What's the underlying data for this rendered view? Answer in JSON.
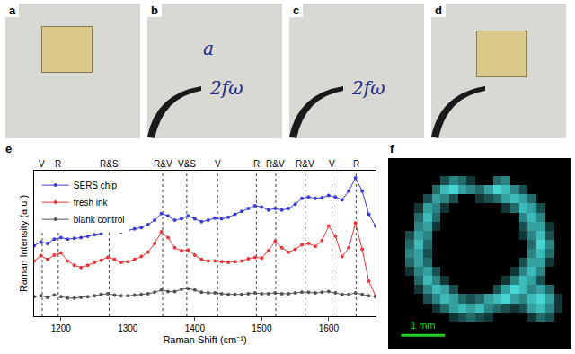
{
  "photos": [
    {
      "label": "a"
    },
    {
      "label": "b",
      "handwriting": [
        "a",
        "2fω"
      ]
    },
    {
      "label": "c",
      "handwriting": [
        "2fω"
      ]
    },
    {
      "label": "d"
    }
  ],
  "chart_data": [
    {
      "panel": "e",
      "type": "line",
      "x_label": "Raman Shift (cm⁻¹)",
      "y_label": "Raman Intensity (a.u.)",
      "x": [
        1160,
        1170,
        1180,
        1190,
        1200,
        1210,
        1220,
        1230,
        1240,
        1250,
        1260,
        1270,
        1280,
        1290,
        1300,
        1310,
        1320,
        1330,
        1340,
        1350,
        1360,
        1370,
        1380,
        1390,
        1400,
        1410,
        1420,
        1430,
        1440,
        1450,
        1460,
        1470,
        1480,
        1490,
        1500,
        1510,
        1520,
        1530,
        1540,
        1550,
        1560,
        1570,
        1580,
        1590,
        1600,
        1610,
        1620,
        1630,
        1640,
        1650,
        1660,
        1670
      ],
      "series": [
        {
          "name": "SERS chip",
          "color": "#3b3bd6",
          "marker": "circle",
          "line_style": "solid",
          "values": [
            48.5,
            51,
            50,
            53,
            54,
            53,
            53.5,
            54,
            55,
            56,
            57,
            59,
            58.5,
            58,
            59,
            60,
            61,
            63,
            66,
            70.5,
            69,
            66,
            67,
            69,
            67,
            65,
            66,
            67.5,
            67,
            68,
            70,
            72,
            74,
            76,
            75,
            73,
            74,
            73,
            74,
            77,
            81,
            82,
            81,
            81.5,
            83,
            82,
            80,
            86,
            95,
            86,
            70,
            62
          ]
        },
        {
          "name": "fresh ink",
          "color": "#e8383d",
          "marker": "circle",
          "line_style": "solid",
          "values": [
            38,
            41.5,
            39,
            42,
            43.5,
            38,
            35,
            33.5,
            35,
            37,
            38.5,
            40.5,
            39,
            37,
            37.5,
            39,
            41,
            44,
            50,
            58,
            54,
            47,
            45,
            45.5,
            42,
            39,
            38,
            38,
            37.5,
            37,
            37.5,
            38,
            39.5,
            40.5,
            40,
            45,
            51.5,
            47,
            44,
            46,
            49,
            50,
            48,
            52,
            62,
            55,
            41,
            47,
            64,
            46,
            24,
            14
          ]
        },
        {
          "name": "blank control",
          "color": "#555555",
          "marker": "circle",
          "line_style": "solid",
          "values": [
            13.5,
            14,
            13,
            14.5,
            13.5,
            12.5,
            12.5,
            13,
            13.5,
            14,
            15,
            15.5,
            14.5,
            14,
            14,
            14.5,
            15,
            15.5,
            16.5,
            18,
            17,
            17,
            18.5,
            19,
            18,
            16.5,
            16,
            16,
            15.5,
            15,
            15,
            15,
            15.5,
            16,
            15.5,
            15.5,
            16,
            15.5,
            15.5,
            16,
            16.5,
            16.5,
            16,
            16.5,
            17,
            16,
            15,
            15,
            16,
            15,
            14,
            13.5
          ]
        }
      ],
      "xlim": [
        1160,
        1670
      ],
      "xticks": [
        1200,
        1300,
        1400,
        1500,
        1600
      ],
      "ylim": [
        0,
        100
      ],
      "tick_labels": "x",
      "grid": false,
      "legend": "top-left",
      "annotations": [
        {
          "x": 1172,
          "text": "V"
        },
        {
          "x": 1196,
          "text": "R"
        },
        {
          "x": 1272,
          "text": "R&S"
        },
        {
          "x": 1352,
          "text": "R&V"
        },
        {
          "x": 1388,
          "text": "V&S"
        },
        {
          "x": 1434,
          "text": "V"
        },
        {
          "x": 1492,
          "text": "R"
        },
        {
          "x": 1521,
          "text": "R&V"
        },
        {
          "x": 1565,
          "text": "R&V"
        },
        {
          "x": 1605,
          "text": "V"
        },
        {
          "x": 1641,
          "text": "R"
        }
      ]
    },
    {
      "panel": "f",
      "type": "heatmap",
      "color": "#4ff0f0",
      "xlim": [
        0,
        4.2
      ],
      "ylim": [
        0,
        4.2
      ],
      "zlim": [
        0,
        9
      ],
      "tick_labels": false,
      "scale_bar": {
        "length": 1,
        "label": "1 mm"
      },
      "cells": [
        [
          0,
          0,
          0,
          0,
          0,
          0,
          0,
          0,
          0,
          0,
          0,
          0,
          0,
          0,
          0,
          0,
          0,
          0,
          0,
          0,
          0
        ],
        [
          0,
          0,
          0,
          0,
          0,
          0,
          0,
          0,
          0,
          0,
          0,
          0,
          0,
          0,
          0,
          0,
          0,
          0,
          0,
          0,
          0
        ],
        [
          0,
          0,
          0,
          0,
          0,
          0,
          3,
          5,
          4,
          2,
          0,
          0,
          4,
          5,
          0,
          0,
          0,
          0,
          0,
          0,
          0
        ],
        [
          0,
          0,
          0,
          0,
          0,
          4,
          7,
          8,
          6,
          5,
          4,
          6,
          8,
          7,
          5,
          3,
          0,
          0,
          0,
          0,
          0
        ],
        [
          0,
          0,
          0,
          0,
          3,
          6,
          5,
          3,
          0,
          0,
          2,
          3,
          4,
          6,
          7,
          6,
          4,
          0,
          0,
          0,
          0
        ],
        [
          0,
          0,
          0,
          2,
          6,
          5,
          2,
          0,
          0,
          0,
          0,
          0,
          0,
          2,
          4,
          7,
          6,
          3,
          0,
          0,
          0
        ],
        [
          0,
          0,
          0,
          4,
          7,
          4,
          0,
          0,
          0,
          0,
          0,
          0,
          0,
          0,
          0,
          5,
          7,
          5,
          0,
          0,
          0
        ],
        [
          0,
          0,
          0,
          5,
          6,
          2,
          0,
          0,
          0,
          0,
          0,
          0,
          0,
          0,
          0,
          3,
          6,
          6,
          2,
          0,
          0
        ],
        [
          0,
          0,
          3,
          6,
          5,
          0,
          0,
          0,
          0,
          0,
          0,
          0,
          0,
          0,
          0,
          2,
          5,
          7,
          3,
          0,
          0
        ],
        [
          0,
          0,
          4,
          7,
          4,
          0,
          0,
          0,
          0,
          0,
          0,
          0,
          0,
          0,
          0,
          0,
          4,
          8,
          5,
          0,
          0
        ],
        [
          0,
          0,
          5,
          6,
          3,
          0,
          0,
          0,
          0,
          0,
          0,
          0,
          0,
          0,
          0,
          0,
          5,
          7,
          4,
          0,
          0
        ],
        [
          0,
          0,
          4,
          6,
          4,
          0,
          0,
          0,
          0,
          0,
          0,
          0,
          0,
          0,
          0,
          3,
          6,
          6,
          2,
          0,
          0
        ],
        [
          0,
          0,
          2,
          5,
          6,
          3,
          0,
          0,
          0,
          0,
          0,
          0,
          0,
          0,
          2,
          5,
          7,
          5,
          0,
          0,
          0
        ],
        [
          0,
          0,
          0,
          4,
          7,
          5,
          2,
          0,
          0,
          0,
          0,
          0,
          0,
          2,
          5,
          7,
          6,
          3,
          0,
          0,
          0
        ],
        [
          0,
          0,
          0,
          2,
          5,
          7,
          6,
          3,
          0,
          0,
          0,
          0,
          3,
          6,
          8,
          7,
          5,
          6,
          4,
          0,
          0
        ],
        [
          0,
          0,
          0,
          0,
          3,
          5,
          7,
          6,
          4,
          3,
          4,
          6,
          7,
          8,
          6,
          5,
          7,
          8,
          6,
          2,
          0
        ],
        [
          0,
          0,
          0,
          0,
          0,
          2,
          4,
          6,
          7,
          6,
          7,
          5,
          4,
          3,
          2,
          3,
          6,
          7,
          5,
          2,
          0
        ],
        [
          0,
          0,
          0,
          0,
          0,
          0,
          0,
          2,
          3,
          4,
          3,
          2,
          0,
          0,
          0,
          0,
          2,
          4,
          3,
          0,
          0
        ],
        [
          0,
          0,
          0,
          0,
          0,
          0,
          0,
          0,
          0,
          0,
          0,
          0,
          0,
          0,
          0,
          0,
          0,
          0,
          0,
          0,
          0
        ],
        [
          0,
          0,
          0,
          0,
          0,
          0,
          0,
          0,
          0,
          0,
          0,
          0,
          0,
          0,
          0,
          0,
          0,
          0,
          0,
          0,
          0
        ],
        [
          0,
          0,
          0,
          0,
          0,
          0,
          0,
          0,
          0,
          0,
          0,
          0,
          0,
          0,
          0,
          0,
          0,
          0,
          0,
          0,
          0
        ]
      ]
    }
  ]
}
